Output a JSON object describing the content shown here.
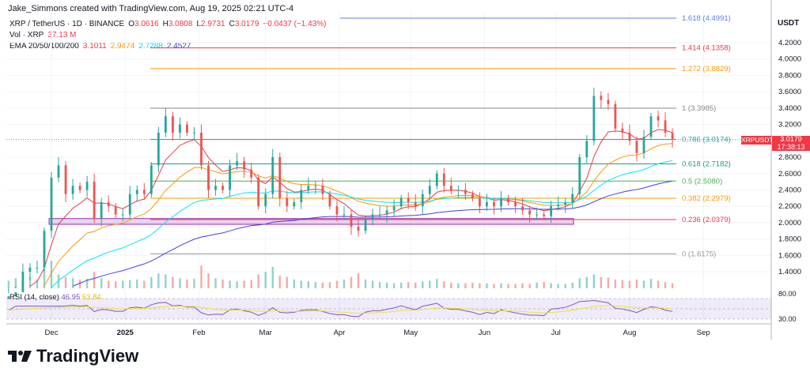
{
  "credit": "Jake_Simmons created with TradingView.com, Aug 19, 2025 02:21 UTC-4",
  "legend": {
    "symbol": "XRP / TetherUS · 1D · BINANCE",
    "o_label": "O",
    "o": "3.0616",
    "h_label": "H",
    "h": "3.0808",
    "l_label": "L",
    "l": "2.9731",
    "c_label": "C",
    "c": "3.0179",
    "change": "−0.0437 (−1.43%)",
    "vol_label": "Vol · XRP",
    "vol": "37.13 M",
    "ema_label": "EMA 20/50/100/200",
    "ema20": "3.1011",
    "ema50": "2.9474",
    "ema100": "2.7288",
    "ema200": "2.4527"
  },
  "rsi": {
    "label": "RSI (14, close)",
    "value": "46.95",
    "ma": "53.84",
    "levels": [
      "80.00",
      "30.00"
    ]
  },
  "price_tag": {
    "symbol": "XRPUSDT",
    "price": "3.0179",
    "countdown": "17:38:13"
  },
  "currency": "USDT",
  "logo": "TradingView",
  "colors": {
    "up": "#26a69a",
    "down": "#ef5350",
    "ema20": "#f23645",
    "ema50": "#ff9800",
    "ema100": "#00e5ff",
    "ema200": "#3f3fe8",
    "rsi": "#7e57c2",
    "rsi_ma": "#f2e03a",
    "box": "#9c27b0"
  },
  "chart_data": {
    "type": "candlestick",
    "title": "XRP / TetherUS · 1D · BINANCE",
    "ylabel": "USDT",
    "ylim": [
      1.2,
      4.6
    ],
    "y_ticks": [
      "4.2000",
      "4.0000",
      "3.8000",
      "3.6000",
      "3.4000",
      "3.2000",
      "3.0000",
      "2.8000",
      "2.6000",
      "2.4000",
      "2.2000",
      "2.0000",
      "1.8000",
      "1.6000",
      "1.4000"
    ],
    "x_ticks": [
      "Dec",
      "2025",
      "Feb",
      "Mar",
      "Apr",
      "May",
      "Jun",
      "Jul",
      "Aug",
      "Sep"
    ],
    "grid": true,
    "dates": [
      "2024-11-13",
      "2024-11-16",
      "2024-11-19",
      "2024-11-22",
      "2024-11-25",
      "2024-11-28",
      "2024-12-01",
      "2024-12-04",
      "2024-12-07",
      "2024-12-10",
      "2024-12-13",
      "2024-12-16",
      "2024-12-19",
      "2024-12-22",
      "2024-12-25",
      "2024-12-28",
      "2024-12-31",
      "2025-01-03",
      "2025-01-06",
      "2025-01-09",
      "2025-01-12",
      "2025-01-15",
      "2025-01-18",
      "2025-01-21",
      "2025-01-24",
      "2025-01-27",
      "2025-01-30",
      "2025-02-02",
      "2025-02-05",
      "2025-02-08",
      "2025-02-11",
      "2025-02-14",
      "2025-02-17",
      "2025-02-20",
      "2025-02-23",
      "2025-02-26",
      "2025-03-01",
      "2025-03-04",
      "2025-03-07",
      "2025-03-10",
      "2025-03-13",
      "2025-03-16",
      "2025-03-19",
      "2025-03-22",
      "2025-03-25",
      "2025-03-28",
      "2025-03-31",
      "2025-04-03",
      "2025-04-06",
      "2025-04-09",
      "2025-04-12",
      "2025-04-15",
      "2025-04-18",
      "2025-04-21",
      "2025-04-24",
      "2025-04-27",
      "2025-04-30",
      "2025-05-03",
      "2025-05-06",
      "2025-05-09",
      "2025-05-12",
      "2025-05-15",
      "2025-05-18",
      "2025-05-21",
      "2025-05-24",
      "2025-05-27",
      "2025-05-30",
      "2025-06-02",
      "2025-06-05",
      "2025-06-08",
      "2025-06-11",
      "2025-06-14",
      "2025-06-17",
      "2025-06-20",
      "2025-06-23",
      "2025-06-26",
      "2025-06-29",
      "2025-07-02",
      "2025-07-05",
      "2025-07-08",
      "2025-07-11",
      "2025-07-14",
      "2025-07-17",
      "2025-07-20",
      "2025-07-23",
      "2025-07-26",
      "2025-07-29",
      "2025-08-01",
      "2025-08-04",
      "2025-08-07",
      "2025-08-10",
      "2025-08-13",
      "2025-08-16",
      "2025-08-19"
    ],
    "close": [
      1.1,
      1.15,
      1.4,
      1.45,
      1.45,
      1.9,
      2.55,
      2.7,
      2.35,
      2.45,
      2.4,
      2.5,
      2.05,
      2.25,
      2.2,
      2.1,
      2.1,
      2.35,
      2.4,
      2.35,
      2.7,
      3.1,
      3.3,
      3.1,
      3.2,
      3.1,
      3.1,
      2.7,
      2.4,
      2.45,
      2.4,
      2.7,
      2.75,
      2.65,
      2.55,
      2.2,
      2.35,
      2.8,
      2.3,
      2.2,
      2.25,
      2.4,
      2.45,
      2.45,
      2.35,
      2.2,
      2.1,
      2.1,
      1.95,
      1.9,
      2.05,
      2.1,
      2.1,
      2.15,
      2.2,
      2.3,
      2.25,
      2.2,
      2.35,
      2.45,
      2.6,
      2.45,
      2.4,
      2.4,
      2.35,
      2.3,
      2.2,
      2.25,
      2.2,
      2.3,
      2.25,
      2.2,
      2.15,
      2.1,
      2.1,
      2.08,
      2.2,
      2.22,
      2.25,
      2.35,
      2.8,
      3.0,
      3.55,
      3.5,
      3.45,
      3.15,
      3.1,
      3.0,
      2.85,
      3.05,
      3.3,
      3.25,
      3.1,
      3.0179
    ],
    "volume_m": [
      60,
      80,
      120,
      90,
      70,
      150,
      220,
      110,
      90,
      80,
      70,
      75,
      130,
      80,
      60,
      55,
      60,
      65,
      70,
      60,
      90,
      120,
      110,
      90,
      80,
      70,
      75,
      180,
      120,
      80,
      70,
      60,
      55,
      60,
      65,
      110,
      130,
      170,
      100,
      90,
      70,
      60,
      55,
      50,
      45,
      50,
      60,
      70,
      90,
      120,
      70,
      60,
      50,
      45,
      40,
      45,
      50,
      45,
      55,
      60,
      75,
      55,
      45,
      40,
      40,
      45,
      40,
      40,
      35,
      40,
      35,
      35,
      40,
      35,
      45,
      50,
      40,
      35,
      35,
      45,
      80,
      90,
      110,
      90,
      85,
      70,
      65,
      60,
      70,
      60,
      75,
      60,
      50,
      40
    ],
    "fib_levels": [
      {
        "label": "1.618 (4.4991)",
        "value": 4.4991,
        "color": "#5b7ef5"
      },
      {
        "label": "1.414 (4.1358)",
        "value": 4.1358,
        "color": "#f23645"
      },
      {
        "label": "1.272 (3.8829)",
        "value": 3.8829,
        "color": "#ff9800"
      },
      {
        "label": "1 (3.3985)",
        "value": 3.3985,
        "color": "#888888"
      },
      {
        "label": "0.786 (3.0174)",
        "value": 3.0174,
        "color": "#26a6b2"
      },
      {
        "label": "0.618 (2.7182)",
        "value": 2.7182,
        "color": "#1e9b8a"
      },
      {
        "label": "0.5 (2.5080)",
        "value": 2.508,
        "color": "#4caf50"
      },
      {
        "label": "0.382 (2.2979)",
        "value": 2.2979,
        "color": "#ff9800"
      },
      {
        "label": "0.236 (2.0379)",
        "value": 2.0379,
        "color": "#f23645"
      },
      {
        "label": "0 (1.6175)",
        "value": 1.6175,
        "color": "#999999"
      }
    ],
    "support_zone": [
      1.98,
      2.05
    ]
  }
}
